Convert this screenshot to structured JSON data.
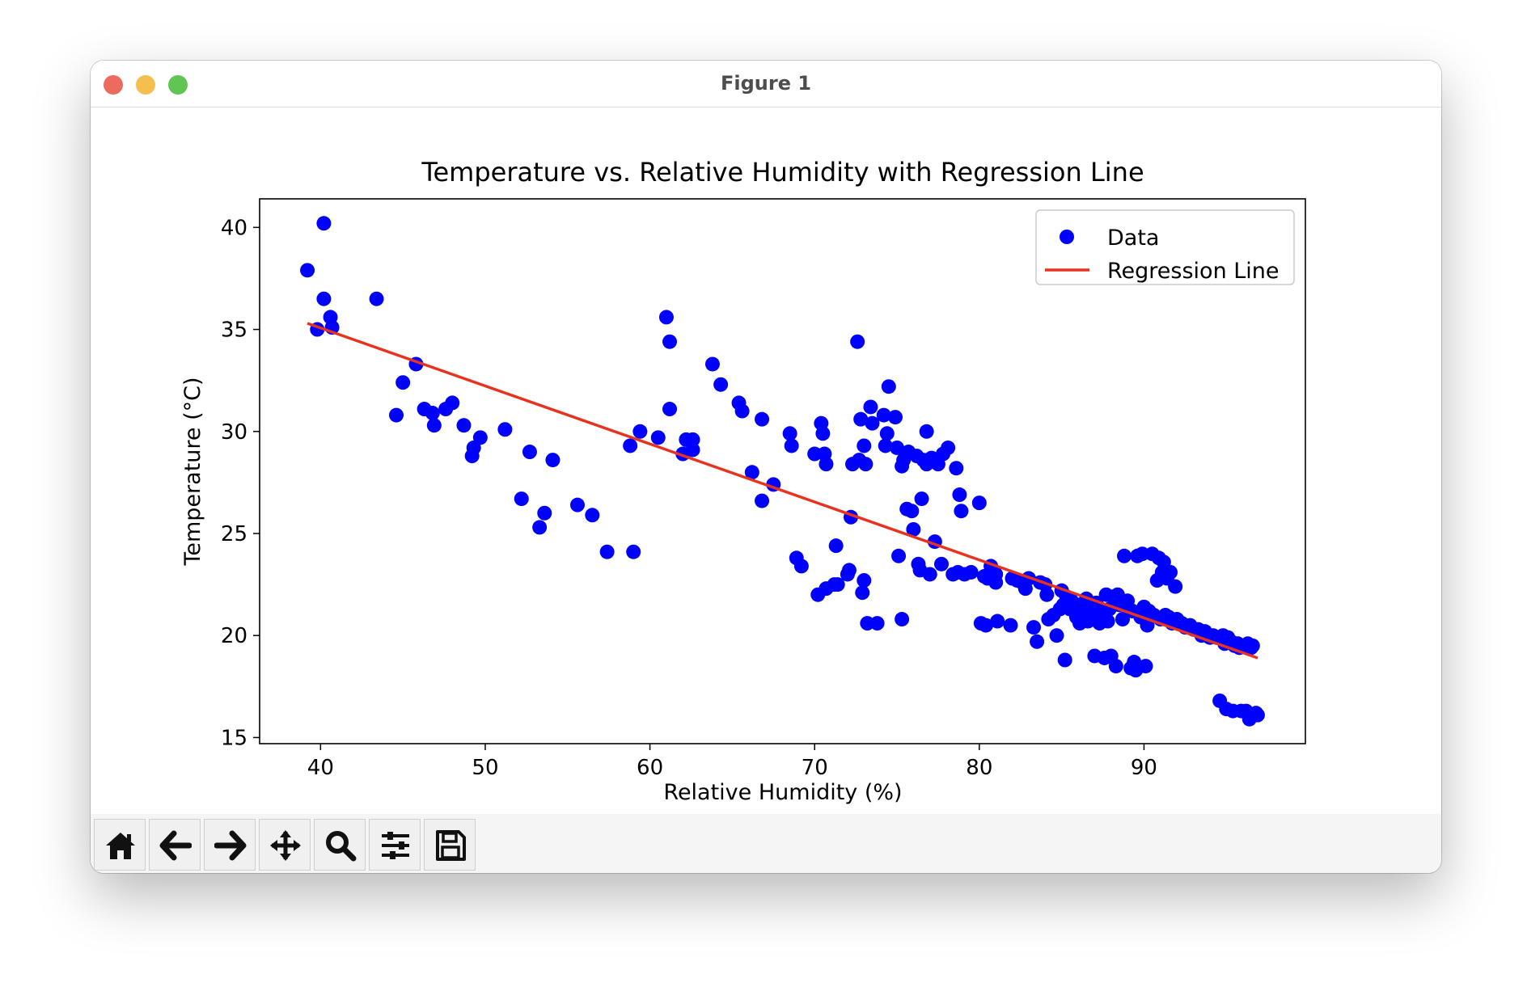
{
  "window": {
    "title": "Figure 1"
  },
  "toolbar": {
    "buttons": [
      {
        "name": "home-icon"
      },
      {
        "name": "back-arrow-icon"
      },
      {
        "name": "forward-arrow-icon"
      },
      {
        "name": "pan-move-icon"
      },
      {
        "name": "zoom-magnifier-icon"
      },
      {
        "name": "configure-subplots-icon"
      },
      {
        "name": "save-floppy-icon"
      }
    ]
  },
  "chart_data": {
    "type": "scatter",
    "title": "Temperature vs. Relative Humidity with Regression Line",
    "xlabel": "Relative Humidity (%)",
    "ylabel": "Temperature (°C)",
    "xlim": [
      36.3,
      99.8
    ],
    "ylim": [
      14.7,
      41.4
    ],
    "xticks": [
      40,
      50,
      60,
      70,
      80,
      90
    ],
    "yticks": [
      15,
      20,
      25,
      30,
      35,
      40
    ],
    "grid": false,
    "legend": {
      "position": "top-right",
      "entries": [
        "Data",
        "Regression Line"
      ]
    },
    "colors": {
      "points": "#0000ff",
      "regression": "#e8321e"
    },
    "series": [
      {
        "name": "Data",
        "type": "scatter",
        "points": [
          [
            39.2,
            37.9
          ],
          [
            40.2,
            40.2
          ],
          [
            39.8,
            35.0
          ],
          [
            40.2,
            36.5
          ],
          [
            40.6,
            35.6
          ],
          [
            40.7,
            35.1
          ],
          [
            43.4,
            36.5
          ],
          [
            44.6,
            30.8
          ],
          [
            45.0,
            32.4
          ],
          [
            45.8,
            33.3
          ],
          [
            46.3,
            31.1
          ],
          [
            46.8,
            30.9
          ],
          [
            46.9,
            30.3
          ],
          [
            47.6,
            31.1
          ],
          [
            48.0,
            31.4
          ],
          [
            48.7,
            30.3
          ],
          [
            49.2,
            28.8
          ],
          [
            49.3,
            29.2
          ],
          [
            49.7,
            29.7
          ],
          [
            51.2,
            30.1
          ],
          [
            52.2,
            26.7
          ],
          [
            52.7,
            29.0
          ],
          [
            53.3,
            25.3
          ],
          [
            53.6,
            26.0
          ],
          [
            54.1,
            28.6
          ],
          [
            55.6,
            26.4
          ],
          [
            56.5,
            25.9
          ],
          [
            57.4,
            24.1
          ],
          [
            58.8,
            29.3
          ],
          [
            59.0,
            24.1
          ],
          [
            59.4,
            30.0
          ],
          [
            60.5,
            29.7
          ],
          [
            61.0,
            35.6
          ],
          [
            61.2,
            34.4
          ],
          [
            61.2,
            31.1
          ],
          [
            62.0,
            28.9
          ],
          [
            62.2,
            29.6
          ],
          [
            62.6,
            29.1
          ],
          [
            62.6,
            29.6
          ],
          [
            63.8,
            33.3
          ],
          [
            64.3,
            32.3
          ],
          [
            65.4,
            31.4
          ],
          [
            65.6,
            31.0
          ],
          [
            66.2,
            28.0
          ],
          [
            66.8,
            26.6
          ],
          [
            66.8,
            30.6
          ],
          [
            67.5,
            27.4
          ],
          [
            68.5,
            29.9
          ],
          [
            68.6,
            29.3
          ],
          [
            68.9,
            23.8
          ],
          [
            69.2,
            23.4
          ],
          [
            70.0,
            28.9
          ],
          [
            70.2,
            22.0
          ],
          [
            70.4,
            30.4
          ],
          [
            70.5,
            29.9
          ],
          [
            70.6,
            28.9
          ],
          [
            70.7,
            22.3
          ],
          [
            70.7,
            28.4
          ],
          [
            71.2,
            22.5
          ],
          [
            71.3,
            24.4
          ],
          [
            71.4,
            22.5
          ],
          [
            72.0,
            23.0
          ],
          [
            72.1,
            23.2
          ],
          [
            72.2,
            25.8
          ],
          [
            72.3,
            28.4
          ],
          [
            72.6,
            34.4
          ],
          [
            72.7,
            28.6
          ],
          [
            72.8,
            30.6
          ],
          [
            72.9,
            22.1
          ],
          [
            73.0,
            22.7
          ],
          [
            73.0,
            29.3
          ],
          [
            73.1,
            28.4
          ],
          [
            73.2,
            20.6
          ],
          [
            73.4,
            31.2
          ],
          [
            73.5,
            30.4
          ],
          [
            73.8,
            20.6
          ],
          [
            74.2,
            30.8
          ],
          [
            74.3,
            29.3
          ],
          [
            74.4,
            29.9
          ],
          [
            74.5,
            32.2
          ],
          [
            74.9,
            30.7
          ],
          [
            75.0,
            29.2
          ],
          [
            75.1,
            23.9
          ],
          [
            75.3,
            20.8
          ],
          [
            75.3,
            28.3
          ],
          [
            75.4,
            28.6
          ],
          [
            75.6,
            26.2
          ],
          [
            75.7,
            29.0
          ],
          [
            75.9,
            26.1
          ],
          [
            76.0,
            25.2
          ],
          [
            76.2,
            28.8
          ],
          [
            76.3,
            23.5
          ],
          [
            76.4,
            23.2
          ],
          [
            76.5,
            26.7
          ],
          [
            76.6,
            28.6
          ],
          [
            76.8,
            28.4
          ],
          [
            76.8,
            30.0
          ],
          [
            77.0,
            23.0
          ],
          [
            77.1,
            28.7
          ],
          [
            77.3,
            24.6
          ],
          [
            77.5,
            28.4
          ],
          [
            77.7,
            23.5
          ],
          [
            77.8,
            28.9
          ],
          [
            78.1,
            29.2
          ],
          [
            78.4,
            23.0
          ],
          [
            78.6,
            28.2
          ],
          [
            78.7,
            23.1
          ],
          [
            78.8,
            26.9
          ],
          [
            78.9,
            26.1
          ],
          [
            79.1,
            23.0
          ],
          [
            79.5,
            23.1
          ],
          [
            80.0,
            26.5
          ],
          [
            80.1,
            20.6
          ],
          [
            80.3,
            22.9
          ],
          [
            80.4,
            20.5
          ],
          [
            80.5,
            22.8
          ],
          [
            80.7,
            23.4
          ],
          [
            81.0,
            22.6
          ],
          [
            81.0,
            23.0
          ],
          [
            81.1,
            20.7
          ],
          [
            81.9,
            20.5
          ],
          [
            82.0,
            22.8
          ],
          [
            82.3,
            22.7
          ],
          [
            82.6,
            22.6
          ],
          [
            82.8,
            22.3
          ],
          [
            83.0,
            22.8
          ],
          [
            83.3,
            20.4
          ],
          [
            83.5,
            19.7
          ],
          [
            83.7,
            22.6
          ],
          [
            84.0,
            22.5
          ],
          [
            84.1,
            22.0
          ],
          [
            84.2,
            20.8
          ],
          [
            84.5,
            21.0
          ],
          [
            84.7,
            20.0
          ],
          [
            84.9,
            21.3
          ],
          [
            85.0,
            22.2
          ],
          [
            85.1,
            21.5
          ],
          [
            85.2,
            18.8
          ],
          [
            85.3,
            21.9
          ],
          [
            85.5,
            21.3
          ],
          [
            85.6,
            21.7
          ],
          [
            85.9,
            20.9
          ],
          [
            86.0,
            21.5
          ],
          [
            86.1,
            20.6
          ],
          [
            86.3,
            21.0
          ],
          [
            86.5,
            21.8
          ],
          [
            86.6,
            20.7
          ],
          [
            86.7,
            21.4
          ],
          [
            86.9,
            20.9
          ],
          [
            87.0,
            19.0
          ],
          [
            87.1,
            21.6
          ],
          [
            87.3,
            20.6
          ],
          [
            87.4,
            21.2
          ],
          [
            87.6,
            18.9
          ],
          [
            87.7,
            22.0
          ],
          [
            87.8,
            20.7
          ],
          [
            87.9,
            21.3
          ],
          [
            88.0,
            19.0
          ],
          [
            88.1,
            21.9
          ],
          [
            88.3,
            18.5
          ],
          [
            88.4,
            22.0
          ],
          [
            88.5,
            21.5
          ],
          [
            88.7,
            20.8
          ],
          [
            88.8,
            23.9
          ],
          [
            88.9,
            21.5
          ],
          [
            89.0,
            21.7
          ],
          [
            89.2,
            18.4
          ],
          [
            89.3,
            21.2
          ],
          [
            89.4,
            18.7
          ],
          [
            89.5,
            18.3
          ],
          [
            89.6,
            23.9
          ],
          [
            89.7,
            21.1
          ],
          [
            89.8,
            20.9
          ],
          [
            89.9,
            24.0
          ],
          [
            90.0,
            21.4
          ],
          [
            90.1,
            18.5
          ],
          [
            90.2,
            20.5
          ],
          [
            90.3,
            21.2
          ],
          [
            90.5,
            24.0
          ],
          [
            90.6,
            21.0
          ],
          [
            90.8,
            22.7
          ],
          [
            90.9,
            23.8
          ],
          [
            91.0,
            20.8
          ],
          [
            91.1,
            23.1
          ],
          [
            91.2,
            23.6
          ],
          [
            91.3,
            21.0
          ],
          [
            91.4,
            22.8
          ],
          [
            91.5,
            20.9
          ],
          [
            91.6,
            23.1
          ],
          [
            91.7,
            20.6
          ],
          [
            91.9,
            22.4
          ],
          [
            92.0,
            20.8
          ],
          [
            92.3,
            20.6
          ],
          [
            92.5,
            20.4
          ],
          [
            92.8,
            20.5
          ],
          [
            93.0,
            20.3
          ],
          [
            93.3,
            20.3
          ],
          [
            93.5,
            20.0
          ],
          [
            93.7,
            20.2
          ],
          [
            94.0,
            19.9
          ],
          [
            94.2,
            20.0
          ],
          [
            94.4,
            19.9
          ],
          [
            94.6,
            16.8
          ],
          [
            94.8,
            20.0
          ],
          [
            94.9,
            19.6
          ],
          [
            95.0,
            16.4
          ],
          [
            95.1,
            19.9
          ],
          [
            95.3,
            19.7
          ],
          [
            95.4,
            16.3
          ],
          [
            95.5,
            19.5
          ],
          [
            95.7,
            19.6
          ],
          [
            95.8,
            19.4
          ],
          [
            95.9,
            16.3
          ],
          [
            96.0,
            19.5
          ],
          [
            96.2,
            16.3
          ],
          [
            96.3,
            19.6
          ],
          [
            96.4,
            15.9
          ],
          [
            96.5,
            19.4
          ],
          [
            96.6,
            19.5
          ],
          [
            96.8,
            16.2
          ],
          [
            96.9,
            16.1
          ]
        ]
      },
      {
        "name": "Regression Line",
        "type": "line",
        "x": [
          39.2,
          96.9
        ],
        "y": [
          35.3,
          18.9
        ]
      }
    ]
  }
}
